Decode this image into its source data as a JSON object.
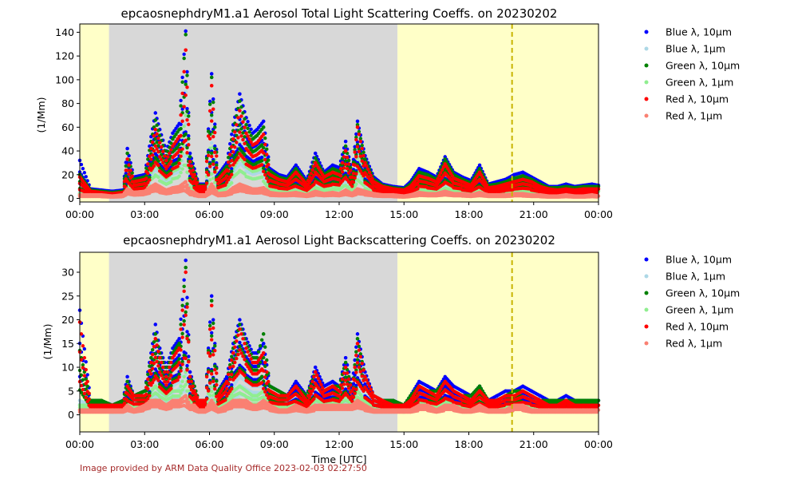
{
  "figure": {
    "xlabel": "Time [UTC]",
    "credit": "Image provided by ARM Data Quality Office 2023-02-03 02:27:50"
  },
  "legend_labels": [
    "Blue λ, 10µm",
    "Blue λ, 1µm",
    "Green λ, 10µm",
    "Green λ, 1µm",
    "Red λ, 10µm",
    "Red λ, 1µm"
  ],
  "colors": {
    "blue10": "#0000ff",
    "blue1": "#add8e6",
    "green10": "#008000",
    "green1": "#90ee90",
    "red10": "#ff0000",
    "red1": "#fa8072",
    "night": "#d8d8d8",
    "day": "#ffffc8",
    "marker": "#c8b400"
  },
  "chart_data": [
    {
      "type": "scatter",
      "title": "epcaosnephdryM1.a1 Aerosol Total Light Scattering Coeffs. on 20230202",
      "ylabel": "(1/Mm)",
      "xlim": [
        "00:00",
        "24:00"
      ],
      "ylim": [
        -3,
        147
      ],
      "xticks": [
        "00:00",
        "03:00",
        "06:00",
        "09:00",
        "12:00",
        "15:00",
        "18:00",
        "21:00",
        "00:00"
      ],
      "yticks": [
        0,
        20,
        40,
        60,
        80,
        100,
        120,
        140
      ],
      "shaded_periods": [
        {
          "kind": "day",
          "start_h": 0,
          "end_h": 1.35
        },
        {
          "kind": "night",
          "start_h": 1.35,
          "end_h": 14.7
        },
        {
          "kind": "day",
          "start_h": 14.7,
          "end_h": 24
        }
      ],
      "vertical_marker_h": 20.0,
      "series_hour": [
        0,
        0.5,
        1,
        1.5,
        2,
        2.2,
        2.5,
        3,
        3.3,
        3.5,
        3.7,
        4,
        4.3,
        4.6,
        4.9,
        5.1,
        5.3,
        5.5,
        5.8,
        6.1,
        6.4,
        6.8,
        7.1,
        7.4,
        7.7,
        8,
        8.2,
        8.5,
        8.8,
        9.2,
        9.6,
        10,
        10.5,
        10.9,
        11.3,
        11.7,
        12,
        12.3,
        12.6,
        12.85,
        13.2,
        13.6,
        14,
        14.5,
        15,
        15.3,
        15.7,
        16.1,
        16.5,
        16.9,
        17.3,
        17.7,
        18.1,
        18.5,
        18.9,
        19.3,
        19.7,
        20.1,
        20.5,
        20.9,
        21.3,
        21.7,
        22.1,
        22.5,
        22.9,
        23.3,
        23.7,
        24
      ],
      "series": [
        {
          "name": "Blue λ, 10µm",
          "values": [
            32,
            8,
            7,
            6,
            7,
            42,
            18,
            20,
            52,
            72,
            58,
            40,
            55,
            63,
            141,
            38,
            25,
            12,
            12,
            105,
            20,
            30,
            62,
            88,
            68,
            55,
            58,
            65,
            25,
            20,
            18,
            28,
            15,
            38,
            22,
            28,
            26,
            48,
            22,
            65,
            36,
            18,
            12,
            10,
            9,
            14,
            25,
            22,
            18,
            35,
            22,
            18,
            15,
            28,
            12,
            14,
            16,
            20,
            22,
            18,
            14,
            10,
            10,
            12,
            10,
            11,
            12,
            11
          ]
        },
        {
          "name": "Blue λ, 1µm",
          "values": [
            5,
            5,
            5,
            4,
            5,
            28,
            12,
            14,
            35,
            48,
            38,
            26,
            36,
            42,
            90,
            24,
            16,
            8,
            8,
            68,
            13,
            20,
            40,
            58,
            44,
            36,
            38,
            42,
            16,
            13,
            12,
            18,
            10,
            25,
            14,
            18,
            17,
            31,
            14,
            42,
            23,
            12,
            8,
            7,
            6,
            9,
            16,
            14,
            12,
            22,
            14,
            12,
            10,
            18,
            8,
            9,
            10,
            13,
            14,
            12,
            9,
            7,
            7,
            8,
            7,
            7,
            8,
            7
          ]
        },
        {
          "name": "Green λ, 10µm",
          "values": [
            20,
            7,
            6,
            5,
            6,
            38,
            16,
            18,
            48,
            66,
            53,
            36,
            50,
            58,
            138,
            35,
            22,
            11,
            11,
            102,
            18,
            27,
            57,
            82,
            62,
            50,
            53,
            60,
            23,
            18,
            16,
            25,
            13,
            34,
            20,
            25,
            23,
            44,
            20,
            62,
            33,
            16,
            11,
            9,
            8,
            12,
            22,
            20,
            16,
            33,
            20,
            16,
            13,
            25,
            11,
            12,
            14,
            17,
            19,
            16,
            12,
            9,
            9,
            10,
            9,
            10,
            10,
            10
          ]
        },
        {
          "name": "Green λ, 1µm",
          "values": [
            4,
            4,
            4,
            3,
            4,
            22,
            10,
            11,
            28,
            38,
            30,
            21,
            29,
            33,
            70,
            19,
            13,
            7,
            7,
            54,
            11,
            16,
            32,
            46,
            35,
            29,
            30,
            34,
            13,
            11,
            10,
            14,
            8,
            20,
            11,
            14,
            13,
            25,
            11,
            34,
            18,
            10,
            7,
            6,
            5,
            7,
            13,
            11,
            10,
            18,
            11,
            10,
            8,
            14,
            7,
            7,
            8,
            10,
            11,
            10,
            7,
            6,
            6,
            6,
            6,
            6,
            6,
            6
          ]
        },
        {
          "name": "Red λ, 10µm",
          "values": [
            18,
            6,
            5,
            4,
            5,
            33,
            14,
            16,
            42,
            58,
            47,
            32,
            44,
            52,
            125,
            31,
            20,
            10,
            10,
            95,
            16,
            24,
            50,
            74,
            55,
            45,
            47,
            54,
            20,
            16,
            14,
            22,
            12,
            30,
            18,
            22,
            20,
            40,
            18,
            60,
            30,
            14,
            10,
            8,
            7,
            10,
            19,
            17,
            14,
            29,
            17,
            14,
            11,
            22,
            9,
            10,
            12,
            14,
            16,
            14,
            10,
            8,
            7,
            8,
            7,
            8,
            8,
            8
          ]
        },
        {
          "name": "Red λ, 1µm",
          "values": [
            3,
            3,
            3,
            2,
            3,
            8,
            5,
            6,
            10,
            12,
            10,
            7,
            9,
            10,
            14,
            6,
            5,
            3,
            3,
            12,
            4,
            5,
            9,
            12,
            10,
            8,
            8,
            9,
            5,
            4,
            4,
            5,
            3,
            6,
            4,
            5,
            4,
            7,
            4,
            8,
            6,
            4,
            3,
            3,
            2,
            3,
            5,
            4,
            4,
            6,
            4,
            4,
            3,
            5,
            3,
            3,
            3,
            4,
            4,
            3,
            3,
            2,
            2,
            3,
            2,
            2,
            3,
            2
          ]
        }
      ]
    },
    {
      "type": "scatter",
      "title": "epcaosnephdryM1.a1 Aerosol Light Backscattering Coeffs. on 20230202",
      "ylabel": "(1/Mm)",
      "xlim": [
        "00:00",
        "24:00"
      ],
      "ylim": [
        -3.6,
        34.2
      ],
      "xticks": [
        "00:00",
        "03:00",
        "06:00",
        "09:00",
        "12:00",
        "15:00",
        "18:00",
        "21:00",
        "00:00"
      ],
      "yticks": [
        0,
        5,
        10,
        15,
        20,
        25,
        30
      ],
      "shaded_periods": [
        {
          "kind": "day",
          "start_h": 0,
          "end_h": 1.35
        },
        {
          "kind": "night",
          "start_h": 1.35,
          "end_h": 14.7
        },
        {
          "kind": "day",
          "start_h": 14.7,
          "end_h": 24
        }
      ],
      "vertical_marker_h": 20.0,
      "series_hour": [
        0,
        0.5,
        1,
        1.5,
        2,
        2.2,
        2.5,
        3,
        3.3,
        3.5,
        3.7,
        4,
        4.3,
        4.6,
        4.9,
        5.1,
        5.3,
        5.5,
        5.8,
        6.1,
        6.4,
        6.8,
        7.1,
        7.4,
        7.7,
        8,
        8.2,
        8.5,
        8.8,
        9.2,
        9.6,
        10,
        10.5,
        10.9,
        11.3,
        11.7,
        12,
        12.3,
        12.6,
        12.85,
        13.2,
        13.6,
        14,
        14.5,
        15,
        15.3,
        15.7,
        16.1,
        16.5,
        16.9,
        17.3,
        17.7,
        18.1,
        18.5,
        18.9,
        19.3,
        19.7,
        20.1,
        20.5,
        20.9,
        21.3,
        21.7,
        22.1,
        22.5,
        22.9,
        23.3,
        23.7,
        24
      ],
      "series": [
        {
          "name": "Blue λ, 10µm",
          "values": [
            22,
            3,
            3,
            2,
            3,
            8,
            4,
            5,
            13,
            19,
            14,
            10,
            14,
            16,
            32.5,
            9,
            6,
            3,
            3,
            25,
            5,
            8,
            15,
            20,
            16,
            13,
            13,
            15,
            6,
            5,
            4,
            7,
            4,
            10,
            6,
            7,
            6,
            12,
            6,
            17,
            9,
            4,
            3,
            3,
            2,
            4,
            7,
            6,
            5,
            8,
            6,
            5,
            4,
            6,
            3,
            4,
            5,
            5,
            6,
            5,
            4,
            3,
            3,
            4,
            3,
            3,
            3,
            3
          ]
        },
        {
          "name": "Blue λ, 1µm",
          "values": [
            3,
            2,
            2,
            2,
            2,
            4,
            3,
            3,
            6,
            8,
            6,
            5,
            6,
            7,
            12,
            4,
            3,
            2,
            2,
            9,
            3,
            4,
            6,
            8,
            7,
            6,
            6,
            6,
            3,
            3,
            3,
            4,
            2,
            5,
            3,
            4,
            3,
            5,
            3,
            7,
            4,
            3,
            2,
            2,
            2,
            2,
            4,
            3,
            3,
            4,
            3,
            3,
            2,
            3,
            2,
            2,
            3,
            3,
            3,
            3,
            2,
            2,
            2,
            2,
            2,
            2,
            2,
            2
          ]
        },
        {
          "name": "Green λ, 10µm",
          "values": [
            13.5,
            3,
            3,
            2,
            3,
            7,
            4,
            5,
            12,
            17,
            13,
            9,
            13,
            15,
            31,
            8,
            6,
            3,
            3,
            24,
            5,
            7,
            14,
            19,
            15,
            12,
            12,
            17,
            6,
            5,
            4,
            6,
            4,
            9,
            5,
            6,
            6,
            11,
            5,
            16,
            8,
            4,
            3,
            3,
            2,
            4,
            6,
            5,
            5,
            7,
            5,
            4,
            4,
            6,
            3,
            3,
            4,
            5,
            5,
            4,
            3,
            3,
            3,
            3,
            3,
            3,
            3,
            3
          ]
        },
        {
          "name": "Green λ, 1µm",
          "values": [
            2,
            2,
            2,
            1,
            2,
            3,
            2,
            3,
            5,
            6,
            5,
            4,
            5,
            5,
            9,
            3,
            3,
            2,
            2,
            7,
            2,
            3,
            5,
            6,
            5,
            4,
            4,
            5,
            3,
            2,
            2,
            3,
            2,
            4,
            3,
            3,
            3,
            4,
            3,
            5,
            3,
            2,
            2,
            2,
            1,
            2,
            3,
            3,
            2,
            3,
            3,
            2,
            2,
            3,
            2,
            2,
            2,
            2,
            3,
            2,
            2,
            2,
            2,
            2,
            2,
            2,
            2,
            2
          ]
        },
        {
          "name": "Red λ, 10µm",
          "values": [
            19.5,
            2,
            2,
            2,
            2,
            6,
            4,
            4,
            11,
            16,
            12,
            8,
            12,
            14,
            30,
            8,
            5,
            3,
            3,
            23,
            4,
            7,
            13,
            18,
            14,
            11,
            11,
            13,
            5,
            4,
            4,
            6,
            3,
            9,
            5,
            6,
            5,
            10,
            5,
            15,
            8,
            4,
            3,
            2,
            2,
            3,
            6,
            5,
            4,
            7,
            5,
            4,
            3,
            5,
            3,
            3,
            4,
            4,
            5,
            4,
            3,
            2,
            2,
            3,
            2,
            2,
            2,
            2
          ]
        },
        {
          "name": "Red λ, 1µm",
          "values": [
            1,
            1,
            1,
            1,
            1,
            2,
            1,
            2,
            3,
            3,
            3,
            2,
            3,
            3,
            4,
            2,
            2,
            1,
            1,
            3,
            1,
            2,
            3,
            3,
            3,
            2,
            2,
            3,
            2,
            1,
            1,
            2,
            1,
            2,
            2,
            2,
            2,
            2,
            2,
            3,
            2,
            1,
            1,
            1,
            1,
            1,
            2,
            2,
            1,
            2,
            2,
            1,
            1,
            2,
            1,
            1,
            1,
            2,
            2,
            1,
            1,
            1,
            1,
            1,
            1,
            1,
            1,
            1
          ]
        }
      ]
    }
  ]
}
